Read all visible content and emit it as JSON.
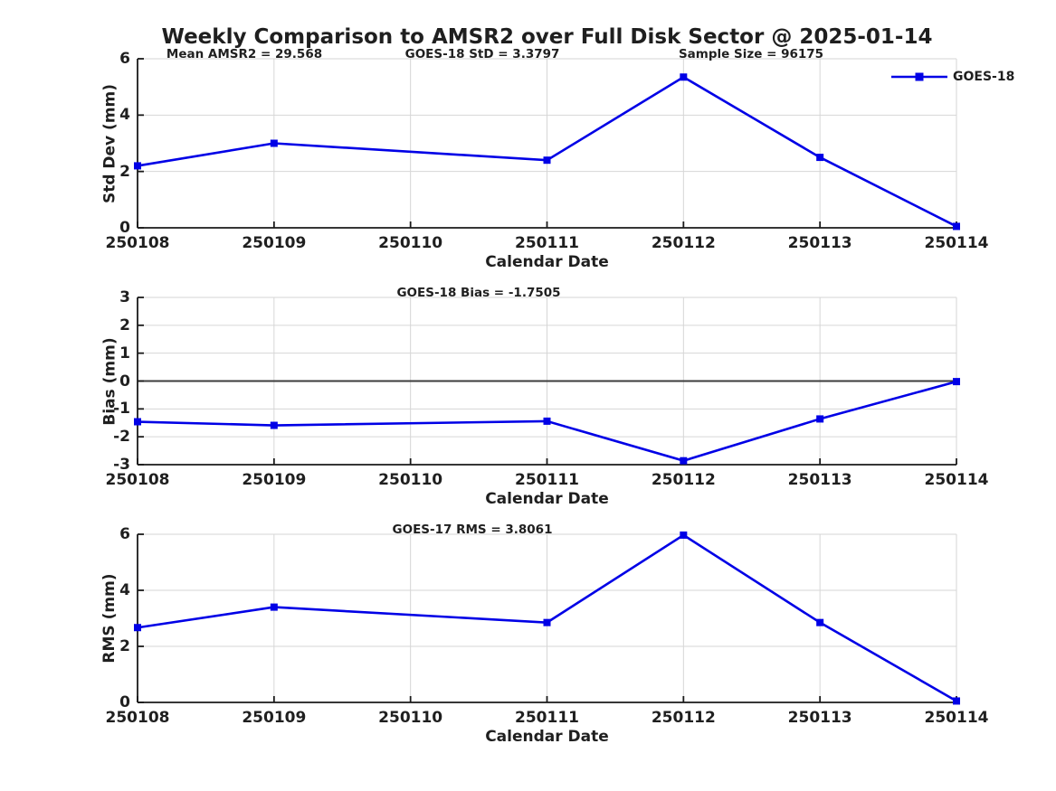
{
  "title": "Weekly Comparison to AMSR2 over Full Disk Sector @ 2025-01-14",
  "legend": {
    "label": "GOES-18",
    "marker": "filled-square",
    "position": "top-right"
  },
  "colors": {
    "line": "#0000e6",
    "marker": "#0000e6",
    "grid": "#d6d6d6",
    "zero_line": "#3c3c3c",
    "axis": "#1a1a1a",
    "text": "#1f1f1f",
    "background": "#ffffff"
  },
  "chart_data": [
    {
      "type": "line",
      "name": "std-dev-panel",
      "ylabel": "Std Dev (mm)",
      "xlabel": "Calendar Date",
      "ylim": [
        0,
        6
      ],
      "yticks": [
        0,
        2,
        4,
        6
      ],
      "grid": true,
      "categories": [
        "250108",
        "250109",
        "250110",
        "250111",
        "250112",
        "250113",
        "250114"
      ],
      "series": [
        {
          "name": "GOES-18",
          "marker": "square",
          "values": [
            2.2,
            3.0,
            null,
            2.4,
            5.35,
            2.5,
            0.05
          ]
        }
      ],
      "annotations": [
        "Mean AMSR2 = 29.568",
        "GOES-18 StD = 3.3797",
        "Sample Size = 96175"
      ],
      "legend_entries": [
        "GOES-18"
      ]
    },
    {
      "type": "line",
      "name": "bias-panel",
      "ylabel": "Bias (mm)",
      "xlabel": "Calendar Date",
      "ylim": [
        -3,
        3
      ],
      "yticks": [
        -3,
        -2,
        -1,
        0,
        1,
        2,
        3
      ],
      "grid": true,
      "zero_line": true,
      "categories": [
        "250108",
        "250109",
        "250110",
        "250111",
        "250112",
        "250113",
        "250114"
      ],
      "series": [
        {
          "name": "GOES-18",
          "marker": "square",
          "values": [
            -1.46,
            -1.59,
            null,
            -1.44,
            -2.86,
            -1.36,
            -0.02
          ]
        }
      ],
      "annotations": [
        "GOES-18 Bias  = -1.7505"
      ]
    },
    {
      "type": "line",
      "name": "rms-panel",
      "ylabel": "RMS (mm)",
      "xlabel": "Calendar Date",
      "ylim": [
        0,
        6
      ],
      "yticks": [
        0,
        2,
        4,
        6
      ],
      "grid": true,
      "categories": [
        "250108",
        "250109",
        "250110",
        "250111",
        "250112",
        "250113",
        "250114"
      ],
      "series": [
        {
          "name": "GOES-17",
          "marker": "square",
          "values": [
            2.67,
            3.4,
            null,
            2.85,
            5.97,
            2.85,
            0.05
          ]
        }
      ],
      "annotations": [
        "GOES-17 RMS = 3.8061"
      ]
    }
  ]
}
